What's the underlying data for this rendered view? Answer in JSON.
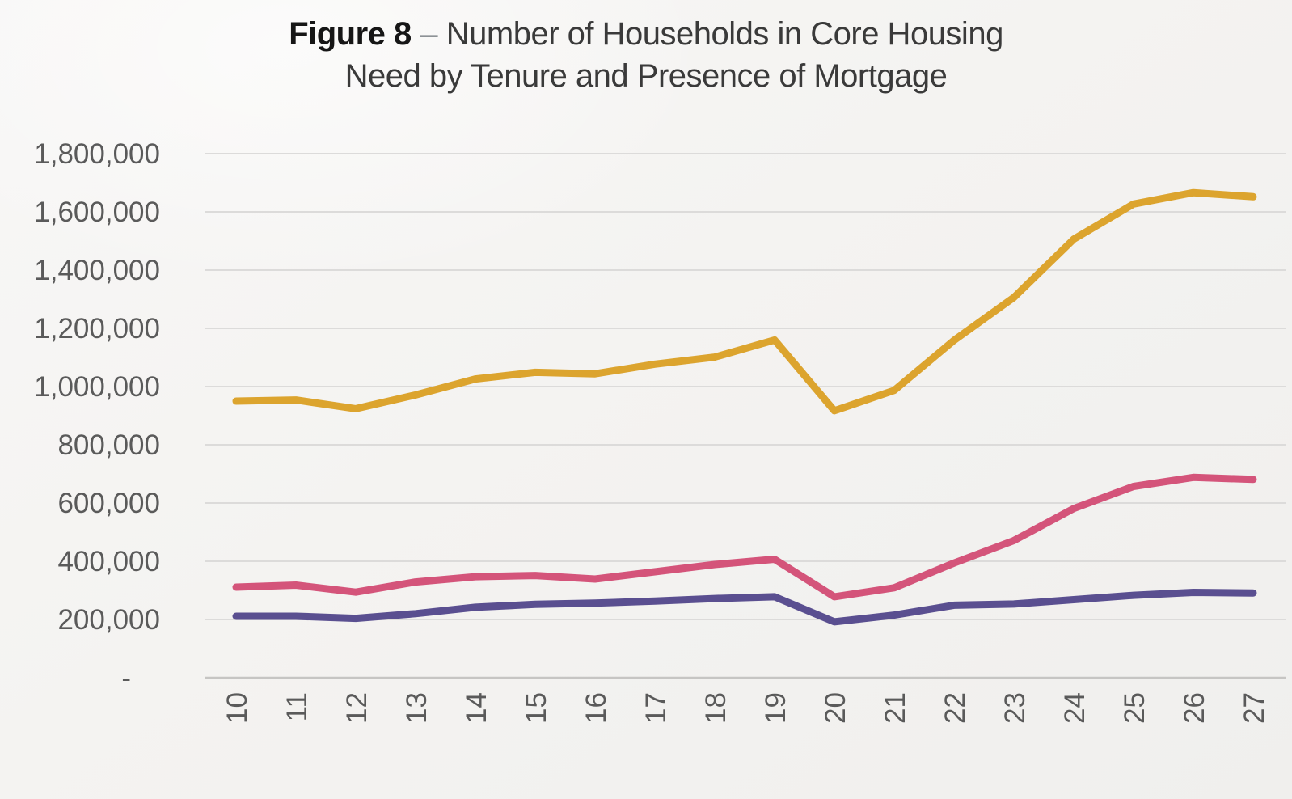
{
  "title": {
    "figure_label": "Figure 8",
    "dash": "–",
    "line1_rest": "Number of Households in Core Housing",
    "line2": "Need by Tenure and Presence of Mortgage",
    "full": "Figure 8 – Number of Households in Core Housing Need by Tenure and Presence of Mortgage"
  },
  "chart_data": {
    "type": "line",
    "title": "Figure 8 – Number of Households in Core Housing Need by Tenure and Presence of Mortgage",
    "categories": [
      "10",
      "11",
      "12",
      "13",
      "14",
      "15",
      "16",
      "17",
      "18",
      "19",
      "20",
      "21",
      "22",
      "23",
      "24",
      "25",
      "26",
      "27"
    ],
    "series": [
      {
        "name": "gold-line",
        "color": "#DCA42E",
        "values": [
          950000,
          954000,
          924000,
          971000,
          1026000,
          1049000,
          1044000,
          1077000,
          1101000,
          1160000,
          917000,
          987000,
          1159000,
          1306000,
          1506000,
          1627000,
          1666000,
          1652000
        ]
      },
      {
        "name": "rose-line",
        "color": "#D4547A",
        "values": [
          311000,
          318000,
          294000,
          329000,
          347000,
          351000,
          339000,
          364000,
          389000,
          407000,
          278000,
          309000,
          394000,
          471000,
          581000,
          657000,
          688000,
          681000
        ]
      },
      {
        "name": "purple-line",
        "color": "#5A4F90",
        "values": [
          211000,
          211000,
          204000,
          220000,
          242000,
          252000,
          256000,
          263000,
          272000,
          278000,
          192000,
          215000,
          249000,
          253000,
          268000,
          283000,
          293000,
          291000
        ]
      }
    ],
    "ylim": [
      0,
      1800000
    ],
    "y_tick_step": 200000,
    "y_tick_labels": [
      "1,800,000",
      "1,600,000",
      "1,400,000",
      "1,200,000",
      "1,000,000",
      "800,000",
      "600,000",
      "400,000",
      "200,000",
      "-"
    ],
    "xlabel": "",
    "ylabel": "",
    "grid": true,
    "legend": "none",
    "colors": {
      "gridline": "#dcdbda",
      "axis_line": "#c6c5c3",
      "tick_text": "#5a5a5a"
    }
  }
}
